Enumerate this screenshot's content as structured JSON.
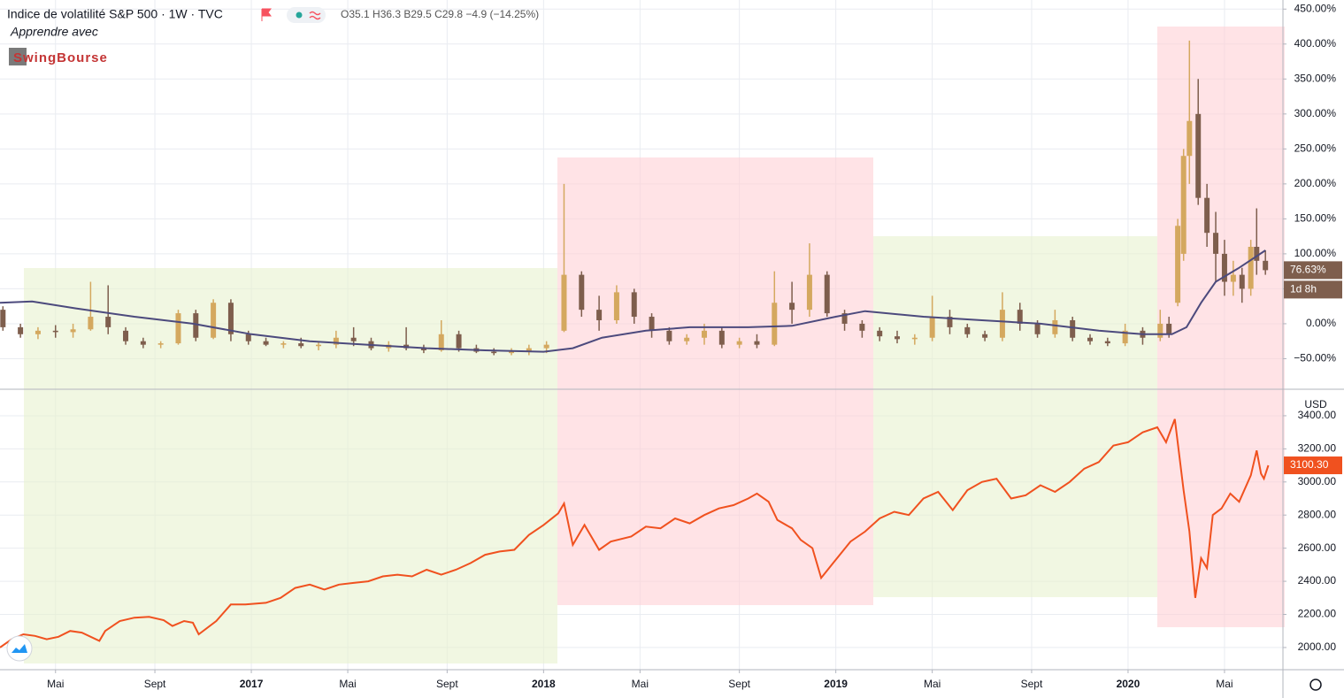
{
  "header": {
    "title": "Indice de volatilité S&P 500 · 1W · TVC",
    "ohlc": "O35.1 H36.3 B29.5 C29.8 −4.9 (−14.25%)",
    "learn": "Apprendre avec",
    "logo": "SwingBourse"
  },
  "chart_data": [
    {
      "type": "candlestick",
      "xlim": [
        2016.14,
        2020.53
      ],
      "ylim": [
        -93.7,
        463
      ],
      "yticks": [
        {
          "value": -50,
          "label": "−50.00%"
        },
        {
          "value": 0,
          "label": "0.00%"
        },
        {
          "value": 50,
          "label": "50.00%"
        },
        {
          "value": 100,
          "label": "100.00%"
        },
        {
          "value": 150,
          "label": "150.00%"
        },
        {
          "value": 200,
          "label": "200.00%"
        },
        {
          "value": 250,
          "label": "250.00%"
        },
        {
          "value": 300,
          "label": "300.00%"
        },
        {
          "value": 350,
          "label": "350.00%"
        },
        {
          "value": 400,
          "label": "400.00%"
        },
        {
          "value": 450,
          "label": "450.00%"
        }
      ],
      "grid": true,
      "up_color": "#d4a85f",
      "down_color": "#7e5e4d",
      "candles": [
        {
          "x": 2016.15,
          "open": 20,
          "high": 25,
          "low": -10,
          "close": -5
        },
        {
          "x": 2016.21,
          "open": -5,
          "high": 0,
          "low": -20,
          "close": -15
        },
        {
          "x": 2016.27,
          "open": -15,
          "high": -5,
          "low": -22,
          "close": -10
        },
        {
          "x": 2016.33,
          "open": -10,
          "high": -2,
          "low": -20,
          "close": -12
        },
        {
          "x": 2016.39,
          "open": -12,
          "high": 0,
          "low": -20,
          "close": -8
        },
        {
          "x": 2016.45,
          "open": -8,
          "high": 60,
          "low": -10,
          "close": 10
        },
        {
          "x": 2016.51,
          "open": 10,
          "high": 55,
          "low": -15,
          "close": -5
        },
        {
          "x": 2016.57,
          "open": -10,
          "high": -5,
          "low": -30,
          "close": -25
        },
        {
          "x": 2016.63,
          "open": -25,
          "high": -20,
          "low": -35,
          "close": -30
        },
        {
          "x": 2016.69,
          "open": -30,
          "high": -25,
          "low": -35,
          "close": -28
        },
        {
          "x": 2016.75,
          "open": -28,
          "high": 20,
          "low": -30,
          "close": 15
        },
        {
          "x": 2016.81,
          "open": 15,
          "high": 20,
          "low": -25,
          "close": -20
        },
        {
          "x": 2016.87,
          "open": -20,
          "high": 35,
          "low": -22,
          "close": 30
        },
        {
          "x": 2016.93,
          "open": 30,
          "high": 35,
          "low": -25,
          "close": -15
        },
        {
          "x": 2016.99,
          "open": -15,
          "high": -10,
          "low": -30,
          "close": -25
        },
        {
          "x": 2017.05,
          "open": -25,
          "high": -20,
          "low": -32,
          "close": -30
        },
        {
          "x": 2017.11,
          "open": -30,
          "high": -25,
          "low": -35,
          "close": -28
        },
        {
          "x": 2017.17,
          "open": -28,
          "high": -20,
          "low": -35,
          "close": -32
        },
        {
          "x": 2017.23,
          "open": -32,
          "high": -25,
          "low": -38,
          "close": -30
        },
        {
          "x": 2017.29,
          "open": -30,
          "high": -10,
          "low": -35,
          "close": -20
        },
        {
          "x": 2017.35,
          "open": -20,
          "high": -5,
          "low": -32,
          "close": -25
        },
        {
          "x": 2017.41,
          "open": -25,
          "high": -20,
          "low": -38,
          "close": -35
        },
        {
          "x": 2017.47,
          "open": -35,
          "high": -25,
          "low": -40,
          "close": -30
        },
        {
          "x": 2017.53,
          "open": -30,
          "high": -5,
          "low": -38,
          "close": -35
        },
        {
          "x": 2017.59,
          "open": -35,
          "high": -30,
          "low": -42,
          "close": -38
        },
        {
          "x": 2017.65,
          "open": -38,
          "high": 5,
          "low": -40,
          "close": -15
        },
        {
          "x": 2017.71,
          "open": -15,
          "high": -10,
          "low": -40,
          "close": -35
        },
        {
          "x": 2017.77,
          "open": -35,
          "high": -30,
          "low": -42,
          "close": -40
        },
        {
          "x": 2017.83,
          "open": -40,
          "high": -35,
          "low": -45,
          "close": -42
        },
        {
          "x": 2017.89,
          "open": -42,
          "high": -35,
          "low": -45,
          "close": -40
        },
        {
          "x": 2017.95,
          "open": -40,
          "high": -30,
          "low": -45,
          "close": -35
        },
        {
          "x": 2018.01,
          "open": -35,
          "high": -25,
          "low": -42,
          "close": -30
        },
        {
          "x": 2018.07,
          "open": -10,
          "high": 200,
          "low": -12,
          "close": 70
        },
        {
          "x": 2018.13,
          "open": 70,
          "high": 75,
          "low": 10,
          "close": 20
        },
        {
          "x": 2018.19,
          "open": 20,
          "high": 40,
          "low": -10,
          "close": 5
        },
        {
          "x": 2018.25,
          "open": 5,
          "high": 55,
          "low": 0,
          "close": 45
        },
        {
          "x": 2018.31,
          "open": 45,
          "high": 50,
          "low": 0,
          "close": 10
        },
        {
          "x": 2018.37,
          "open": 10,
          "high": 15,
          "low": -20,
          "close": -10
        },
        {
          "x": 2018.43,
          "open": -10,
          "high": -5,
          "low": -30,
          "close": -25
        },
        {
          "x": 2018.49,
          "open": -25,
          "high": -15,
          "low": -30,
          "close": -20
        },
        {
          "x": 2018.55,
          "open": -20,
          "high": 0,
          "low": -30,
          "close": -10
        },
        {
          "x": 2018.61,
          "open": -10,
          "high": -5,
          "low": -35,
          "close": -30
        },
        {
          "x": 2018.67,
          "open": -30,
          "high": -20,
          "low": -35,
          "close": -25
        },
        {
          "x": 2018.73,
          "open": -25,
          "high": -15,
          "low": -35,
          "close": -30
        },
        {
          "x": 2018.79,
          "open": -30,
          "high": 75,
          "low": -32,
          "close": 30
        },
        {
          "x": 2018.85,
          "open": 30,
          "high": 60,
          "low": 0,
          "close": 20
        },
        {
          "x": 2018.91,
          "open": 20,
          "high": 115,
          "low": 10,
          "close": 70
        },
        {
          "x": 2018.97,
          "open": 70,
          "high": 75,
          "low": 10,
          "close": 15
        },
        {
          "x": 2019.03,
          "open": 15,
          "high": 20,
          "low": -10,
          "close": 0
        },
        {
          "x": 2019.09,
          "open": 0,
          "high": 5,
          "low": -20,
          "close": -10
        },
        {
          "x": 2019.15,
          "open": -10,
          "high": -5,
          "low": -25,
          "close": -18
        },
        {
          "x": 2019.21,
          "open": -18,
          "high": -10,
          "low": -28,
          "close": -22
        },
        {
          "x": 2019.27,
          "open": -22,
          "high": -15,
          "low": -30,
          "close": -20
        },
        {
          "x": 2019.33,
          "open": -20,
          "high": 40,
          "low": -25,
          "close": 10
        },
        {
          "x": 2019.39,
          "open": 10,
          "high": 20,
          "low": -15,
          "close": -5
        },
        {
          "x": 2019.45,
          "open": -5,
          "high": 0,
          "low": -20,
          "close": -15
        },
        {
          "x": 2019.51,
          "open": -15,
          "high": -10,
          "low": -25,
          "close": -20
        },
        {
          "x": 2019.57,
          "open": -20,
          "high": 45,
          "low": -25,
          "close": 20
        },
        {
          "x": 2019.63,
          "open": 20,
          "high": 30,
          "low": -10,
          "close": 0
        },
        {
          "x": 2019.69,
          "open": 0,
          "high": 5,
          "low": -20,
          "close": -15
        },
        {
          "x": 2019.75,
          "open": -15,
          "high": 20,
          "low": -20,
          "close": 5
        },
        {
          "x": 2019.81,
          "open": 5,
          "high": 10,
          "low": -25,
          "close": -20
        },
        {
          "x": 2019.87,
          "open": -20,
          "high": -15,
          "low": -30,
          "close": -25
        },
        {
          "x": 2019.93,
          "open": -25,
          "high": -20,
          "low": -32,
          "close": -28
        },
        {
          "x": 2019.99,
          "open": -28,
          "high": 0,
          "low": -32,
          "close": -10
        },
        {
          "x": 2020.05,
          "open": -10,
          "high": -5,
          "low": -30,
          "close": -20
        },
        {
          "x": 2020.11,
          "open": -20,
          "high": 20,
          "low": -25,
          "close": 0
        },
        {
          "x": 2020.14,
          "open": 0,
          "high": 10,
          "low": -20,
          "close": -15
        },
        {
          "x": 2020.17,
          "open": 30,
          "high": 150,
          "low": 25,
          "close": 140
        },
        {
          "x": 2020.19,
          "open": 100,
          "high": 250,
          "low": 90,
          "close": 240
        },
        {
          "x": 2020.21,
          "open": 240,
          "high": 405,
          "low": 200,
          "close": 290
        },
        {
          "x": 2020.24,
          "open": 300,
          "high": 350,
          "low": 170,
          "close": 180
        },
        {
          "x": 2020.27,
          "open": 180,
          "high": 200,
          "low": 110,
          "close": 130
        },
        {
          "x": 2020.3,
          "open": 130,
          "high": 160,
          "low": 60,
          "close": 100
        },
        {
          "x": 2020.33,
          "open": 100,
          "high": 120,
          "low": 40,
          "close": 60
        },
        {
          "x": 2020.36,
          "open": 60,
          "high": 90,
          "low": 40,
          "close": 70
        },
        {
          "x": 2020.39,
          "open": 70,
          "high": 80,
          "low": 30,
          "close": 50
        },
        {
          "x": 2020.42,
          "open": 50,
          "high": 120,
          "low": 40,
          "close": 110
        },
        {
          "x": 2020.44,
          "open": 110,
          "high": 165,
          "low": 70,
          "close": 90
        },
        {
          "x": 2020.47,
          "open": 90,
          "high": 105,
          "low": 70,
          "close": 76.63
        }
      ],
      "line": {
        "color": "#4c4a7d",
        "x": [
          2016.14,
          2016.25,
          2016.4,
          2016.6,
          2016.8,
          2017.0,
          2017.2,
          2017.4,
          2017.6,
          2017.8,
          2018.0,
          2018.1,
          2018.2,
          2018.35,
          2018.5,
          2018.7,
          2018.85,
          2019.0,
          2019.1,
          2019.3,
          2019.5,
          2019.7,
          2019.9,
          2020.05,
          2020.15,
          2020.2,
          2020.25,
          2020.3,
          2020.38,
          2020.47
        ],
        "values": [
          30,
          32,
          22,
          10,
          0,
          -15,
          -25,
          -30,
          -35,
          -38,
          -40,
          -35,
          -20,
          -10,
          -5,
          -5,
          -3,
          10,
          18,
          10,
          5,
          0,
          -10,
          -15,
          -15,
          -5,
          30,
          60,
          80,
          105
        ]
      },
      "last_label": "76.63%",
      "countdown": "1d 8h"
    },
    {
      "type": "line",
      "xlim": [
        2016.14,
        2020.53
      ],
      "ylim": [
        1866,
        3560
      ],
      "currency": "USD",
      "yticks": [
        {
          "value": 2000,
          "label": "2000.00"
        },
        {
          "value": 2200,
          "label": "2200.00"
        },
        {
          "value": 2400,
          "label": "2400.00"
        },
        {
          "value": 2600,
          "label": "2600.00"
        },
        {
          "value": 2800,
          "label": "2800.00"
        },
        {
          "value": 3000,
          "label": "3000.00"
        },
        {
          "value": 3200,
          "label": "3200.00"
        },
        {
          "value": 3400,
          "label": "3400.00"
        }
      ],
      "xticks": [
        {
          "value": 2016.33,
          "label": "Mai"
        },
        {
          "value": 2016.67,
          "label": "Sept"
        },
        2017,
        {
          "value": 2017.33,
          "label": "Mai"
        },
        {
          "value": 2017.67,
          "label": "Sept"
        },
        2018,
        {
          "value": 2018.33,
          "label": "Mai"
        },
        {
          "value": 2018.67,
          "label": "Sept"
        },
        2019,
        {
          "value": 2019.33,
          "label": "Mai"
        },
        {
          "value": 2019.67,
          "label": "Sept"
        },
        2020,
        {
          "value": 2020.33,
          "label": "Mai"
        }
      ],
      "grid": true,
      "series": [
        {
          "color": "#f0511f",
          "x": [
            2016.14,
            2016.18,
            2016.22,
            2016.26,
            2016.3,
            2016.34,
            2016.38,
            2016.42,
            2016.48,
            2016.5,
            2016.55,
            2016.6,
            2016.65,
            2016.7,
            2016.73,
            2016.77,
            2016.8,
            2016.82,
            2016.88,
            2016.93,
            2016.98,
            2017.05,
            2017.1,
            2017.15,
            2017.2,
            2017.25,
            2017.3,
            2017.35,
            2017.4,
            2017.45,
            2017.5,
            2017.55,
            2017.6,
            2017.65,
            2017.7,
            2017.75,
            2017.8,
            2017.85,
            2017.9,
            2017.95,
            2018.0,
            2018.05,
            2018.07,
            2018.1,
            2018.14,
            2018.19,
            2018.23,
            2018.3,
            2018.35,
            2018.4,
            2018.45,
            2018.5,
            2018.55,
            2018.6,
            2018.65,
            2018.7,
            2018.73,
            2018.77,
            2018.8,
            2018.85,
            2018.88,
            2018.92,
            2018.95,
            2019.0,
            2019.05,
            2019.1,
            2019.15,
            2019.2,
            2019.25,
            2019.3,
            2019.35,
            2019.4,
            2019.45,
            2019.5,
            2019.55,
            2019.6,
            2019.65,
            2019.7,
            2019.75,
            2019.8,
            2019.85,
            2019.9,
            2019.95,
            2020.0,
            2020.05,
            2020.1,
            2020.13,
            2020.16,
            2020.19,
            2020.21,
            2020.23,
            2020.25,
            2020.27,
            2020.29,
            2020.32,
            2020.35,
            2020.38,
            2020.42,
            2020.44,
            2020.455,
            2020.465,
            2020.48
          ],
          "values": [
            2000,
            2050,
            2080,
            2070,
            2050,
            2065,
            2100,
            2090,
            2040,
            2100,
            2160,
            2180,
            2185,
            2165,
            2130,
            2160,
            2150,
            2080,
            2160,
            2260,
            2260,
            2270,
            2300,
            2360,
            2380,
            2350,
            2380,
            2390,
            2400,
            2430,
            2440,
            2430,
            2470,
            2440,
            2470,
            2510,
            2560,
            2580,
            2590,
            2680,
            2740,
            2810,
            2870,
            2620,
            2740,
            2590,
            2640,
            2670,
            2730,
            2720,
            2780,
            2750,
            2800,
            2840,
            2860,
            2900,
            2930,
            2880,
            2770,
            2720,
            2650,
            2600,
            2420,
            2530,
            2640,
            2700,
            2780,
            2820,
            2800,
            2900,
            2940,
            2830,
            2950,
            3000,
            3020,
            2900,
            2920,
            2980,
            2940,
            3000,
            3080,
            3120,
            3220,
            3240,
            3300,
            3330,
            3240,
            3380,
            2950,
            2700,
            2300,
            2540,
            2480,
            2800,
            2840,
            2930,
            2880,
            3040,
            3190,
            3050,
            3020,
            3100.3
          ]
        }
      ],
      "last_label": "3100.30"
    }
  ]
}
